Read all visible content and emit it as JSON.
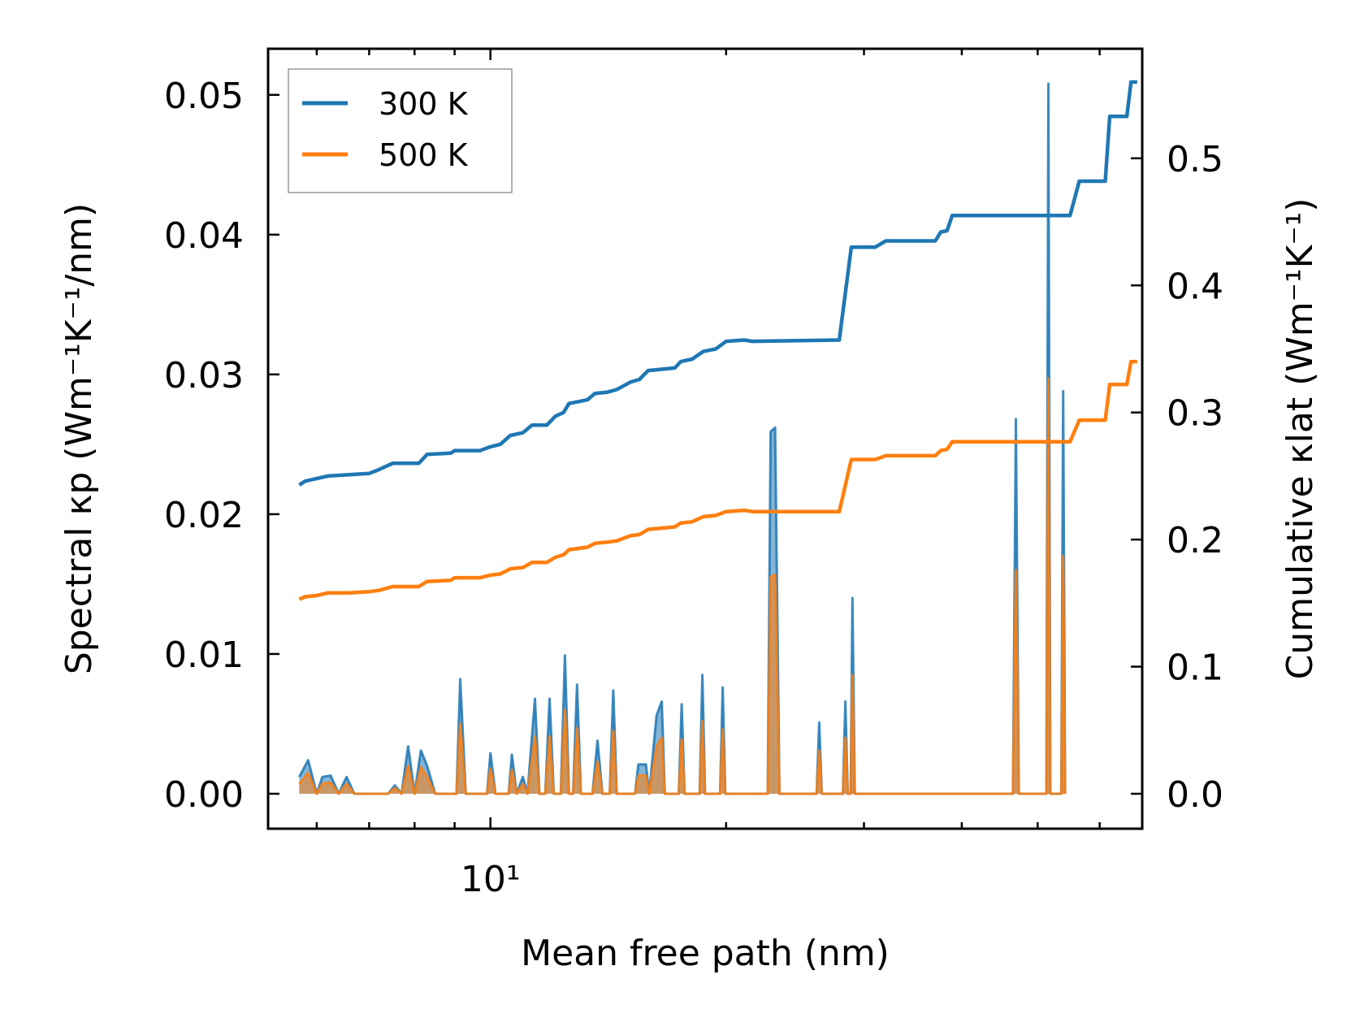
{
  "chart_data": {
    "type": "line",
    "xlabel": "Mean free path (nm)",
    "ylabel_left": "Spectral κp (Wm⁻¹K⁻¹/nm)",
    "ylabel_right": "Cumulative κlat (Wm⁻¹K⁻¹)",
    "xscale": "log",
    "xlim": [
      5.2,
      68
    ],
    "ylim_left": [
      -0.0025,
      0.0533
    ],
    "ylim_right": [
      -0.0275,
      0.5862
    ],
    "x_tick_label": "10¹",
    "x_major_tick": 10,
    "left_ticks": [
      {
        "value": 0.0,
        "label": "0.00"
      },
      {
        "value": 0.01,
        "label": "0.01"
      },
      {
        "value": 0.02,
        "label": "0.02"
      },
      {
        "value": 0.03,
        "label": "0.03"
      },
      {
        "value": 0.04,
        "label": "0.04"
      },
      {
        "value": 0.05,
        "label": "0.05"
      }
    ],
    "right_ticks": [
      {
        "value": 0.0,
        "label": "0.0"
      },
      {
        "value": 0.1,
        "label": "0.1"
      },
      {
        "value": 0.2,
        "label": "0.2"
      },
      {
        "value": 0.3,
        "label": "0.3"
      },
      {
        "value": 0.4,
        "label": "0.4"
      },
      {
        "value": 0.5,
        "label": "0.5"
      }
    ],
    "legend": {
      "placement": "upper-left",
      "entries": [
        "300 K",
        "500 K"
      ]
    },
    "series": [
      {
        "name": "300 K",
        "color": "#1f77b4",
        "kind": "cumulative",
        "axis": "right",
        "points": [
          [
            5.7,
            0.243
          ],
          [
            5.8,
            0.246
          ],
          [
            6.0,
            0.248
          ],
          [
            6.2,
            0.25
          ],
          [
            6.6,
            0.251
          ],
          [
            7.0,
            0.252
          ],
          [
            7.2,
            0.255
          ],
          [
            7.5,
            0.26
          ],
          [
            8.1,
            0.26
          ],
          [
            8.3,
            0.267
          ],
          [
            8.9,
            0.268
          ],
          [
            9.0,
            0.27
          ],
          [
            9.7,
            0.27
          ],
          [
            10.0,
            0.273
          ],
          [
            10.3,
            0.275
          ],
          [
            10.6,
            0.282
          ],
          [
            11.0,
            0.284
          ],
          [
            11.3,
            0.29
          ],
          [
            11.8,
            0.29
          ],
          [
            12.1,
            0.297
          ],
          [
            12.4,
            0.3
          ],
          [
            12.6,
            0.307
          ],
          [
            13.3,
            0.31
          ],
          [
            13.6,
            0.315
          ],
          [
            14.1,
            0.316
          ],
          [
            14.5,
            0.318
          ],
          [
            15.1,
            0.324
          ],
          [
            15.5,
            0.326
          ],
          [
            15.9,
            0.333
          ],
          [
            17.2,
            0.335
          ],
          [
            17.5,
            0.34
          ],
          [
            18.1,
            0.342
          ],
          [
            18.7,
            0.348
          ],
          [
            19.4,
            0.35
          ],
          [
            20.0,
            0.356
          ],
          [
            21.1,
            0.357
          ],
          [
            21.6,
            0.356
          ],
          [
            27.9,
            0.357
          ],
          [
            28.9,
            0.43
          ],
          [
            31.0,
            0.43
          ],
          [
            32.0,
            0.435
          ],
          [
            37.0,
            0.435
          ],
          [
            37.6,
            0.442
          ],
          [
            38.3,
            0.443
          ],
          [
            38.9,
            0.455
          ],
          [
            55.0,
            0.455
          ],
          [
            56.5,
            0.482
          ],
          [
            61.0,
            0.482
          ],
          [
            61.8,
            0.533
          ],
          [
            65.0,
            0.533
          ],
          [
            65.8,
            0.56
          ],
          [
            67.0,
            0.56
          ]
        ]
      },
      {
        "name": "500 K",
        "color": "#ff7f0e",
        "kind": "cumulative",
        "axis": "right",
        "points": [
          [
            5.7,
            0.153
          ],
          [
            5.8,
            0.155
          ],
          [
            6.0,
            0.156
          ],
          [
            6.2,
            0.158
          ],
          [
            6.6,
            0.158
          ],
          [
            7.0,
            0.159
          ],
          [
            7.2,
            0.16
          ],
          [
            7.5,
            0.163
          ],
          [
            8.1,
            0.163
          ],
          [
            8.3,
            0.167
          ],
          [
            8.9,
            0.168
          ],
          [
            9.0,
            0.17
          ],
          [
            9.7,
            0.17
          ],
          [
            10.0,
            0.172
          ],
          [
            10.3,
            0.173
          ],
          [
            10.6,
            0.177
          ],
          [
            11.0,
            0.178
          ],
          [
            11.3,
            0.182
          ],
          [
            11.8,
            0.182
          ],
          [
            12.1,
            0.186
          ],
          [
            12.4,
            0.188
          ],
          [
            12.6,
            0.192
          ],
          [
            13.3,
            0.194
          ],
          [
            13.6,
            0.197
          ],
          [
            14.1,
            0.198
          ],
          [
            14.5,
            0.199
          ],
          [
            15.1,
            0.203
          ],
          [
            15.5,
            0.204
          ],
          [
            15.9,
            0.208
          ],
          [
            17.2,
            0.21
          ],
          [
            17.5,
            0.213
          ],
          [
            18.1,
            0.214
          ],
          [
            18.7,
            0.218
          ],
          [
            19.4,
            0.219
          ],
          [
            20.0,
            0.222
          ],
          [
            21.1,
            0.223
          ],
          [
            21.6,
            0.222
          ],
          [
            27.9,
            0.222
          ],
          [
            28.9,
            0.263
          ],
          [
            31.0,
            0.263
          ],
          [
            32.0,
            0.266
          ],
          [
            37.0,
            0.266
          ],
          [
            37.6,
            0.27
          ],
          [
            38.3,
            0.271
          ],
          [
            38.9,
            0.277
          ],
          [
            55.0,
            0.277
          ],
          [
            56.5,
            0.294
          ],
          [
            61.0,
            0.294
          ],
          [
            61.8,
            0.322
          ],
          [
            65.0,
            0.322
          ],
          [
            65.8,
            0.34
          ],
          [
            67.0,
            0.34
          ]
        ]
      },
      {
        "name": "300 K",
        "color": "#1f77b4",
        "kind": "spectral",
        "axis": "left",
        "points": [
          [
            5.7,
            0.0012
          ],
          [
            5.85,
            0.0024
          ],
          [
            6.0,
            0.0
          ],
          [
            6.1,
            0.0012
          ],
          [
            6.25,
            0.0013
          ],
          [
            6.4,
            0.0
          ],
          [
            6.55,
            0.0012
          ],
          [
            6.7,
            0.0
          ],
          [
            7.4,
            0.0
          ],
          [
            7.55,
            0.0006
          ],
          [
            7.7,
            0.0
          ],
          [
            7.85,
            0.0034
          ],
          [
            8.0,
            0.0
          ],
          [
            8.15,
            0.0031
          ],
          [
            8.3,
            0.002
          ],
          [
            8.5,
            0.0
          ],
          [
            9.05,
            0.0
          ],
          [
            9.15,
            0.0082
          ],
          [
            9.3,
            0.0
          ],
          [
            9.9,
            0.0
          ],
          [
            10.0,
            0.0029
          ],
          [
            10.15,
            0.0
          ],
          [
            10.55,
            0.0
          ],
          [
            10.65,
            0.0028
          ],
          [
            10.8,
            0.0
          ],
          [
            11.0,
            0.0012
          ],
          [
            11.15,
            0.0
          ],
          [
            11.4,
            0.0068
          ],
          [
            11.55,
            0.0
          ],
          [
            11.75,
            0.0
          ],
          [
            11.9,
            0.0068
          ],
          [
            12.05,
            0.0
          ],
          [
            12.3,
            0.0
          ],
          [
            12.45,
            0.0099
          ],
          [
            12.6,
            0.0
          ],
          [
            12.75,
            0.0
          ],
          [
            12.9,
            0.0078
          ],
          [
            13.05,
            0.0
          ],
          [
            13.5,
            0.0
          ],
          [
            13.7,
            0.0038
          ],
          [
            13.9,
            0.0
          ],
          [
            14.2,
            0.0
          ],
          [
            14.35,
            0.0074
          ],
          [
            14.5,
            0.0
          ],
          [
            15.3,
            0.0
          ],
          [
            15.45,
            0.0021
          ],
          [
            15.8,
            0.0021
          ],
          [
            15.95,
            0.0
          ],
          [
            16.3,
            0.0056
          ],
          [
            16.55,
            0.0066
          ],
          [
            16.7,
            0.0
          ],
          [
            17.4,
            0.0
          ],
          [
            17.55,
            0.0064
          ],
          [
            17.7,
            0.0
          ],
          [
            18.5,
            0.0
          ],
          [
            18.65,
            0.0085
          ],
          [
            18.8,
            0.0
          ],
          [
            19.65,
            0.0
          ],
          [
            19.8,
            0.0076
          ],
          [
            19.95,
            0.0
          ],
          [
            22.6,
            0.0
          ],
          [
            22.8,
            0.0259
          ],
          [
            23.1,
            0.0262
          ],
          [
            23.4,
            0.0
          ],
          [
            26.1,
            0.0
          ],
          [
            26.3,
            0.0051
          ],
          [
            26.5,
            0.0
          ],
          [
            28.2,
            0.0
          ],
          [
            28.4,
            0.0066
          ],
          [
            28.6,
            0.0
          ],
          [
            28.85,
            0.0
          ],
          [
            29.0,
            0.014
          ],
          [
            29.2,
            0.0
          ],
          [
            46.5,
            0.0
          ],
          [
            46.9,
            0.0268
          ],
          [
            47.3,
            0.0
          ],
          [
            51.3,
            0.0
          ],
          [
            51.6,
            0.0508
          ],
          [
            51.9,
            0.0
          ],
          [
            53.6,
            0.0
          ],
          [
            53.9,
            0.0288
          ],
          [
            54.2,
            0.0
          ]
        ]
      },
      {
        "name": "500 K",
        "color": "#ff7f0e",
        "kind": "spectral",
        "axis": "left",
        "points": [
          [
            5.7,
            0.0007
          ],
          [
            5.85,
            0.0015
          ],
          [
            6.0,
            0.0
          ],
          [
            6.1,
            0.0007
          ],
          [
            6.25,
            0.0008
          ],
          [
            6.4,
            0.0
          ],
          [
            6.55,
            0.0007
          ],
          [
            6.7,
            0.0
          ],
          [
            7.4,
            0.0
          ],
          [
            7.55,
            0.0004
          ],
          [
            7.7,
            0.0
          ],
          [
            7.85,
            0.002
          ],
          [
            8.0,
            0.0
          ],
          [
            8.15,
            0.0019
          ],
          [
            8.3,
            0.0012
          ],
          [
            8.5,
            0.0
          ],
          [
            9.05,
            0.0
          ],
          [
            9.15,
            0.005
          ],
          [
            9.3,
            0.0
          ],
          [
            9.9,
            0.0
          ],
          [
            10.0,
            0.0018
          ],
          [
            10.15,
            0.0
          ],
          [
            10.55,
            0.0
          ],
          [
            10.65,
            0.0017
          ],
          [
            10.8,
            0.0
          ],
          [
            11.0,
            0.0007
          ],
          [
            11.15,
            0.0
          ],
          [
            11.4,
            0.0041
          ],
          [
            11.55,
            0.0
          ],
          [
            11.75,
            0.0
          ],
          [
            11.9,
            0.0041
          ],
          [
            12.05,
            0.0
          ],
          [
            12.3,
            0.0
          ],
          [
            12.45,
            0.006
          ],
          [
            12.6,
            0.0
          ],
          [
            12.75,
            0.0
          ],
          [
            12.9,
            0.0047
          ],
          [
            13.05,
            0.0
          ],
          [
            13.5,
            0.0
          ],
          [
            13.7,
            0.0023
          ],
          [
            13.9,
            0.0
          ],
          [
            14.2,
            0.0
          ],
          [
            14.35,
            0.0045
          ],
          [
            14.5,
            0.0
          ],
          [
            15.3,
            0.0
          ],
          [
            15.45,
            0.0013
          ],
          [
            15.8,
            0.0013
          ],
          [
            15.95,
            0.0
          ],
          [
            16.3,
            0.0034
          ],
          [
            16.55,
            0.004
          ],
          [
            16.7,
            0.0
          ],
          [
            17.4,
            0.0
          ],
          [
            17.55,
            0.0039
          ],
          [
            17.7,
            0.0
          ],
          [
            18.5,
            0.0
          ],
          [
            18.65,
            0.0052
          ],
          [
            18.8,
            0.0
          ],
          [
            19.65,
            0.0
          ],
          [
            19.8,
            0.0046
          ],
          [
            19.95,
            0.0
          ],
          [
            22.6,
            0.0
          ],
          [
            22.8,
            0.0155
          ],
          [
            23.1,
            0.0157
          ],
          [
            23.4,
            0.0
          ],
          [
            26.1,
            0.0
          ],
          [
            26.3,
            0.0031
          ],
          [
            26.5,
            0.0
          ],
          [
            28.2,
            0.0
          ],
          [
            28.4,
            0.004
          ],
          [
            28.6,
            0.0
          ],
          [
            28.85,
            0.0
          ],
          [
            29.0,
            0.0085
          ],
          [
            29.2,
            0.0
          ],
          [
            46.5,
            0.0
          ],
          [
            46.9,
            0.016
          ],
          [
            47.3,
            0.0
          ],
          [
            51.3,
            0.0
          ],
          [
            51.6,
            0.0297
          ],
          [
            51.9,
            0.0
          ],
          [
            53.6,
            0.0
          ],
          [
            53.9,
            0.017
          ],
          [
            54.2,
            0.0
          ]
        ]
      }
    ]
  }
}
